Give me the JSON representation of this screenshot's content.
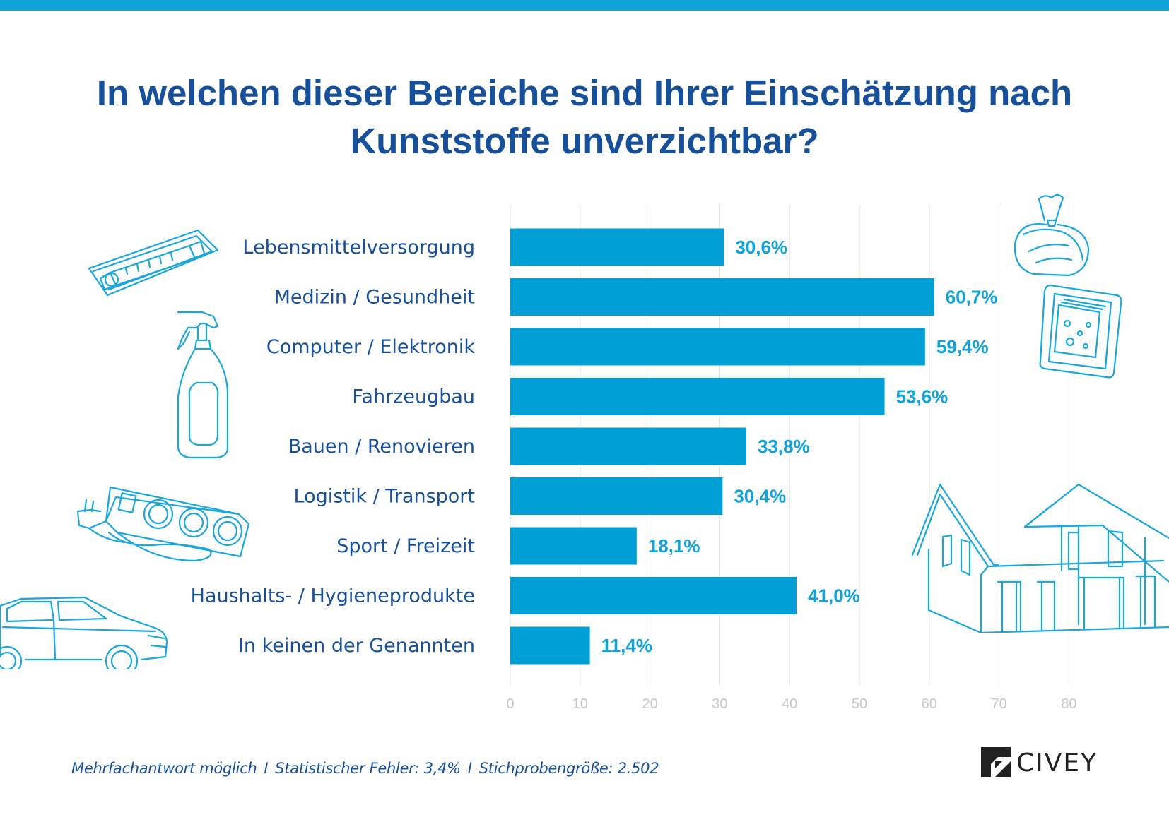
{
  "title_lines": [
    "In welchen dieser Bereiche sind Ihrer Einschätzung nach",
    "Kunststoffe unverzichtbar?"
  ],
  "colors": {
    "top_bar": "#0fa3d9",
    "bar": "#00a0d6",
    "title": "#164f9a",
    "category_label": "#164f9a",
    "value_label": "#0fa3d9",
    "grid": "#e3e3e3",
    "tick_label": "#c8c8c8",
    "illustration_stroke": "#1aa7dc"
  },
  "chart_data": {
    "type": "bar",
    "orientation": "horizontal",
    "categories": [
      "Lebensmittelversorgung",
      "Medizin / Gesundheit",
      "Computer / Elektronik",
      "Fahrzeugbau",
      "Bauen / Renovieren",
      "Logistik / Transport",
      "Sport / Freizeit",
      "Haushalts- / Hygieneprodukte",
      "In keinen der Genannten"
    ],
    "values": [
      30.6,
      60.7,
      59.4,
      53.6,
      33.8,
      30.4,
      18.1,
      41.0,
      11.4
    ],
    "value_labels": [
      "30,6%",
      "60,7%",
      "59,4%",
      "53,6%",
      "33,8%",
      "30,4%",
      "18,1%",
      "41,0%",
      "11,4%"
    ],
    "x_ticks": [
      0,
      10,
      20,
      30,
      40,
      50,
      60,
      70,
      80
    ],
    "xlim": [
      0,
      90
    ],
    "grid": true,
    "xlabel": "",
    "ylabel": ""
  },
  "footer": {
    "note_1": "Mehrfachantwort möglich",
    "note_2": "Statistischer Fehler: 3,4%",
    "note_3": "Stichprobengröße: 2.502",
    "separator": "I"
  },
  "logo": {
    "text": "CIVEY"
  },
  "illustrations": [
    "syringe-icon",
    "spray-bottle-icon",
    "power-strip-icon",
    "car-icon",
    "bread-bag-icon",
    "packaged-cheese-icon",
    "house-icon"
  ]
}
